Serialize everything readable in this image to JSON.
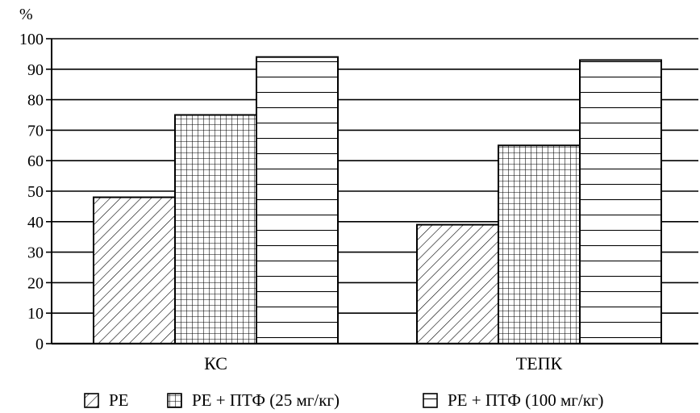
{
  "chart_data": {
    "type": "bar",
    "ylabel": "%",
    "ylim": [
      0,
      100
    ],
    "yticks": [
      0,
      10,
      20,
      30,
      40,
      50,
      60,
      70,
      80,
      90,
      100
    ],
    "grid": true,
    "legend_position": "bottom",
    "categories": [
      "КС",
      "ТЕПК"
    ],
    "series": [
      {
        "name": "PE",
        "pattern": "diagonal-hatch",
        "values": [
          48,
          39
        ]
      },
      {
        "name": "PE + ПТФ (25 мг/кг)",
        "pattern": "grid-hatch",
        "values": [
          75,
          65
        ]
      },
      {
        "name": "PE + ПТФ (100 мг/кг)",
        "pattern": "horizontal-hatch",
        "values": [
          94,
          93
        ]
      }
    ]
  }
}
